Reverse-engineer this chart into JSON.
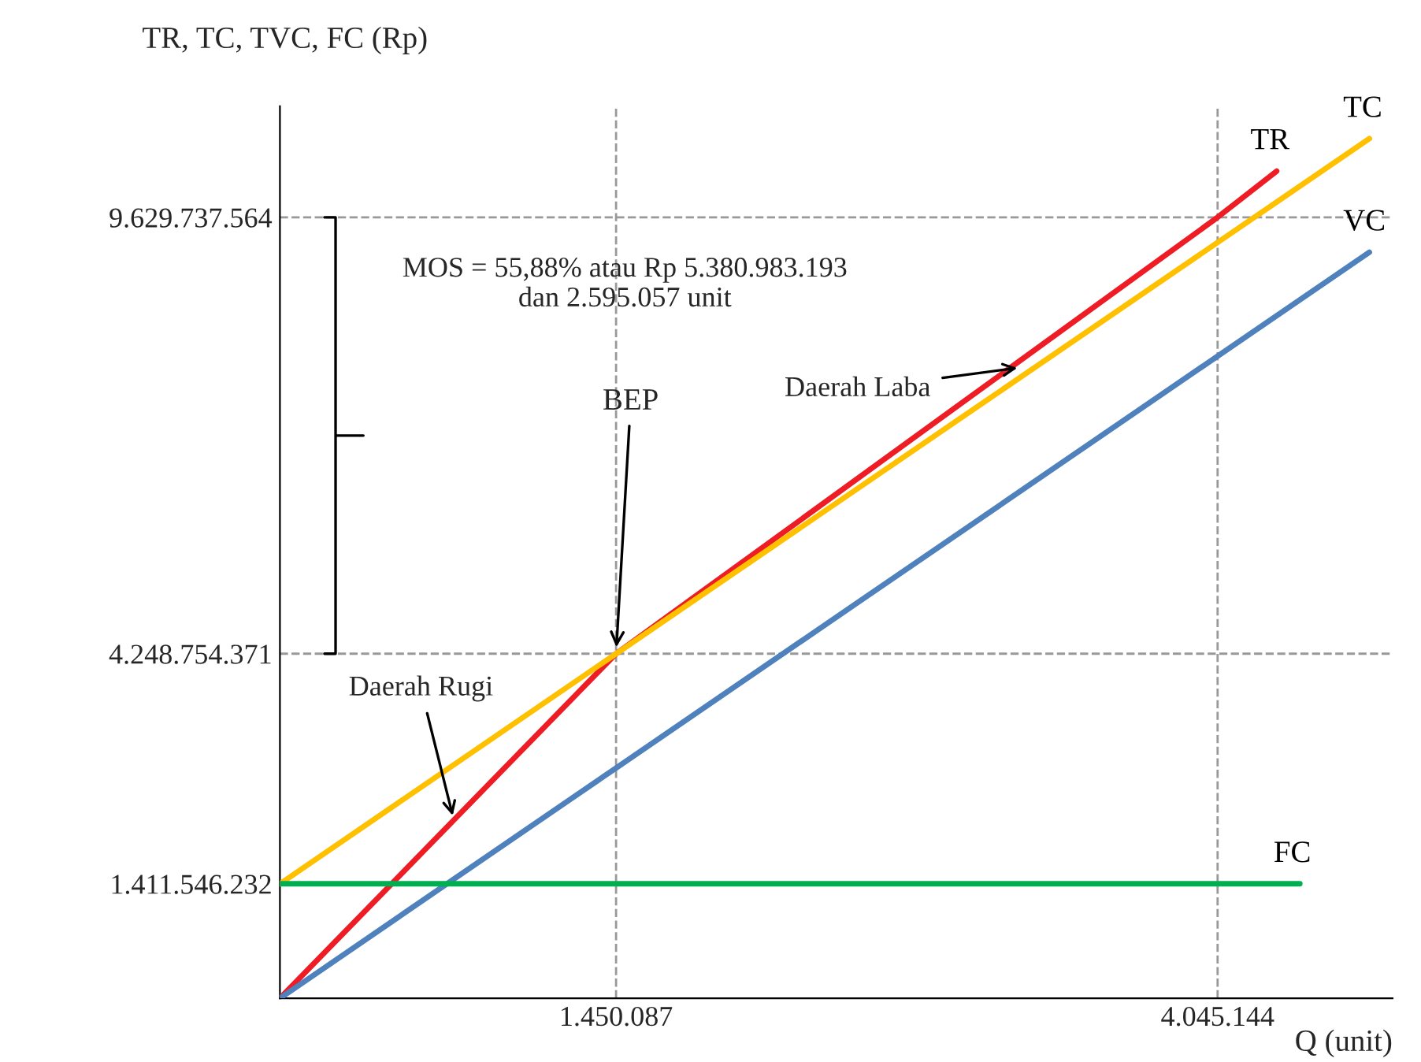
{
  "chart_data": {
    "type": "line",
    "ylabel": "TR, TC, TVC, FC (Rp)",
    "xlabel": "Q (unit)",
    "xlim": [
      0,
      4800000
    ],
    "ylim": [
      0,
      11000000000
    ],
    "xticks": [
      {
        "value": 1450087,
        "label": "1.450.087"
      },
      {
        "value": 4045144,
        "label": "4.045.144"
      }
    ],
    "yticks": [
      {
        "value": 1411546232,
        "label": "1.411.546.232"
      },
      {
        "value": 4248754371,
        "label": "4.248.754.371"
      },
      {
        "value": 9629737564,
        "label": "9.629.737.564"
      }
    ],
    "series": [
      {
        "name": "TR",
        "color": "#ee1c25",
        "x": [
          0,
          1450087,
          4045144,
          4300000
        ],
        "values": [
          0,
          4248754371,
          9629737564,
          10200000000
        ]
      },
      {
        "name": "TC",
        "color": "#ffc000",
        "x": [
          0,
          1450087,
          4700000
        ],
        "values": [
          1411546232,
          4248754371,
          10600000000
        ]
      },
      {
        "name": "VC",
        "color": "#4f81bd",
        "x": [
          0,
          1450087,
          4700000
        ],
        "values": [
          0,
          2840000000,
          9200000000
        ]
      },
      {
        "name": "FC",
        "color": "#00b050",
        "x": [
          0,
          4400000
        ],
        "values": [
          1411546232,
          1411546232
        ]
      }
    ],
    "ref_lines": [
      {
        "axis": "y",
        "value": 4248754371,
        "color": "#999999",
        "line_style": "dashed"
      },
      {
        "axis": "y",
        "value": 9629737564,
        "color": "#999999",
        "line_style": "dashed"
      },
      {
        "axis": "x",
        "value": 1450087,
        "color": "#999999",
        "line_style": "dashed"
      },
      {
        "axis": "x",
        "value": 4045144,
        "color": "#999999",
        "line_style": "dashed"
      }
    ],
    "annotations": [
      "MOS = 55,88% atau Rp 5.380.983.193\ndan 2.595.057 unit",
      {
        "text": "BEP",
        "x": 1450087,
        "y": 4248754371
      },
      {
        "text": "Daerah Laba",
        "x": 3200000,
        "y": 7780000000
      },
      {
        "text": "Daerah Rugi",
        "x": 750000,
        "y": 2200000000
      }
    ],
    "grid": false,
    "legend": false,
    "line_style": "solid",
    "marker": "none"
  }
}
